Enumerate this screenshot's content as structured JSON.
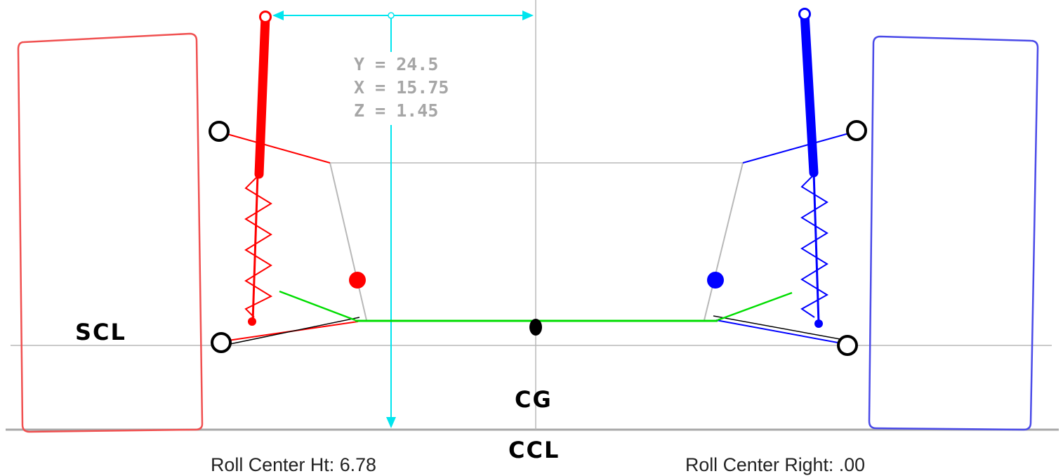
{
  "labels": {
    "scl": "SCL",
    "cg": "CG",
    "ccl": "CCL"
  },
  "coordinates": {
    "y": "Y = 24.5",
    "x": "X = 15.75",
    "z": "Z = 1.45"
  },
  "footer": {
    "roll_center_left": "Roll Center Ht: 6.78",
    "roll_center_right": "Roll Center Right: .00"
  },
  "colors": {
    "left_side": "#ff0000",
    "right_side": "#0000ff",
    "dimension": "#00e5ee",
    "axle": "#00dd00",
    "guide": "#b8b8b8",
    "wheel_left": "#f05050",
    "wheel_right": "#4a4ae8"
  }
}
